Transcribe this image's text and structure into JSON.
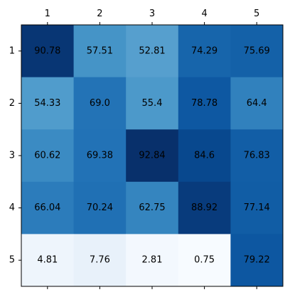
{
  "chart_data": {
    "type": "heatmap",
    "title": "",
    "xlabel": "",
    "ylabel": "",
    "x_categories": [
      "1",
      "2",
      "3",
      "4",
      "5"
    ],
    "y_categories": [
      "1",
      "2",
      "3",
      "4",
      "5"
    ],
    "x_axis_position": "top",
    "colormap": "Blues",
    "grid": false,
    "legend": "none",
    "values": [
      [
        90.78,
        57.51,
        52.81,
        74.29,
        75.69
      ],
      [
        54.33,
        69.0,
        55.4,
        78.78,
        64.4
      ],
      [
        60.62,
        69.38,
        92.84,
        84.6,
        76.83
      ],
      [
        66.04,
        70.24,
        62.75,
        88.92,
        77.14
      ],
      [
        4.81,
        7.76,
        2.81,
        0.75,
        79.22
      ]
    ],
    "cell_labels": [
      [
        "90.78",
        "57.51",
        "52.81",
        "74.29",
        "75.69"
      ],
      [
        "54.33",
        "69.0",
        "55.4",
        "78.78",
        "64.4"
      ],
      [
        "60.62",
        "69.38",
        "92.84",
        "84.6",
        "76.83"
      ],
      [
        "66.04",
        "70.24",
        "62.75",
        "88.92",
        "77.14"
      ],
      [
        "4.81",
        "7.76",
        "2.81",
        "0.75",
        "79.22"
      ]
    ]
  }
}
